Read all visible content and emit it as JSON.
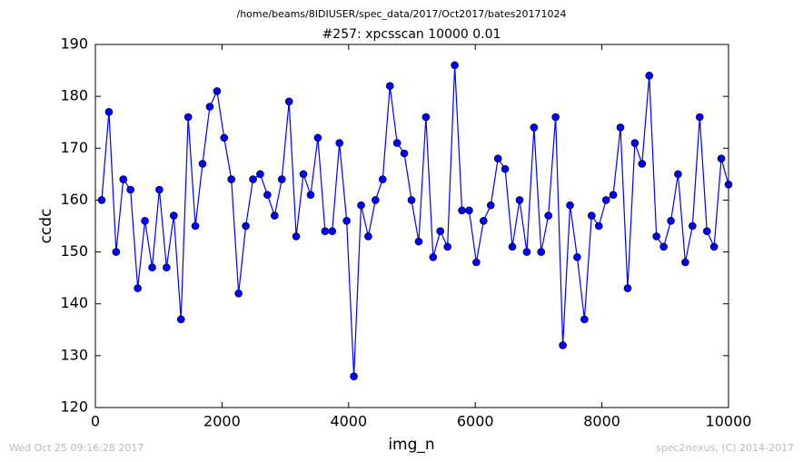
{
  "chart_data": {
    "type": "line",
    "suptitle": "/home/beams/8IDIUSER/spec_data/2017/Oct2017/bates20171024",
    "title": "#257: xpcsscan 10000 0.01",
    "xlabel": "img_n",
    "ylabel": "ccdc",
    "footer_left": "Wed Oct 25 09:16:28 2017",
    "footer_right": "spec2nexus, (C) 2014-2017",
    "color": "#0000ff",
    "marker": "circle",
    "x": [
      100,
      214,
      328,
      441,
      555,
      669,
      783,
      897,
      1010,
      1124,
      1238,
      1352,
      1466,
      1579,
      1693,
      1807,
      1921,
      2034,
      2148,
      2262,
      2376,
      2490,
      2603,
      2717,
      2831,
      2945,
      3059,
      3172,
      3286,
      3400,
      3514,
      3628,
      3741,
      3855,
      3969,
      4083,
      4197,
      4310,
      4424,
      4538,
      4652,
      4766,
      4879,
      4993,
      5107,
      5221,
      5334,
      5448,
      5562,
      5676,
      5790,
      5903,
      6017,
      6131,
      6245,
      6359,
      6472,
      6586,
      6700,
      6814,
      6928,
      7041,
      7155,
      7269,
      7383,
      7497,
      7610,
      7724,
      7838,
      7952,
      8066,
      8179,
      8293,
      8407,
      8521,
      8634,
      8748,
      8862,
      8976,
      9090,
      9203,
      9317,
      9431,
      9545,
      9659,
      9772,
      9886,
      10000
    ],
    "values": [
      160,
      177,
      150,
      164,
      162,
      143,
      156,
      147,
      162,
      147,
      157,
      137,
      176,
      155,
      167,
      178,
      181,
      172,
      164,
      142,
      155,
      164,
      165,
      161,
      157,
      164,
      179,
      153,
      165,
      161,
      172,
      154,
      154,
      171,
      156,
      126,
      159,
      153,
      160,
      164,
      182,
      171,
      169,
      160,
      152,
      176,
      149,
      154,
      151,
      186,
      158,
      158,
      148,
      156,
      159,
      168,
      166,
      151,
      160,
      150,
      174,
      150,
      157,
      176,
      132,
      159,
      149,
      137,
      157,
      155,
      160,
      161,
      174,
      143,
      171,
      167,
      184,
      153,
      151,
      156,
      165,
      148,
      155,
      176,
      154,
      151,
      168,
      163
    ],
    "xlim": [
      0,
      10000
    ],
    "xticks": [
      0,
      2000,
      4000,
      6000,
      8000,
      10000
    ],
    "ylim": [
      120,
      190
    ],
    "yticks": [
      120,
      130,
      140,
      150,
      160,
      170,
      180,
      190
    ]
  }
}
